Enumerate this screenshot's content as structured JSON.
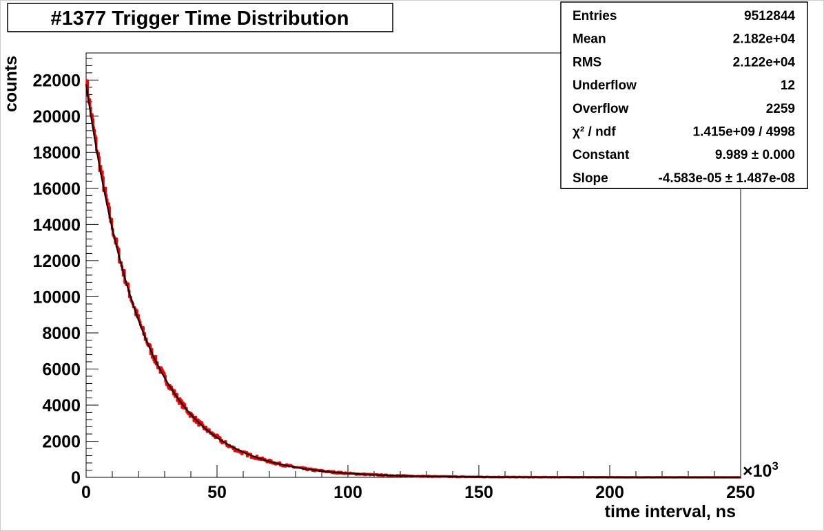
{
  "chart_data": {
    "type": "histogram",
    "title": "#1377 Trigger Time Distribution",
    "xlabel": "time interval, ns",
    "ylabel": "counts",
    "x_multiplier": "×10",
    "x_multiplier_exponent": "3",
    "xlim": [
      0,
      250000
    ],
    "ylim": [
      0,
      23500
    ],
    "x_ticks": [
      0,
      50000,
      100000,
      150000,
      200000,
      250000
    ],
    "x_tick_labels": [
      "0",
      "50",
      "100",
      "150",
      "200",
      "250"
    ],
    "y_ticks": [
      0,
      2000,
      4000,
      6000,
      8000,
      10000,
      12000,
      14000,
      16000,
      18000,
      20000,
      22000
    ],
    "y_tick_labels": [
      "0",
      "2000",
      "4000",
      "6000",
      "8000",
      "10000",
      "12000",
      "14000",
      "16000",
      "18000",
      "20000",
      "22000"
    ],
    "grid": false,
    "legend": "none",
    "series": [
      {
        "style": "histogram-red",
        "color": "#ff0000",
        "x": [
          0,
          5000,
          10000,
          15000,
          20000,
          25000,
          30000,
          35000,
          40000,
          45000,
          50000,
          55000,
          60000,
          65000,
          70000,
          75000,
          80000,
          90000,
          100000,
          110000,
          120000,
          140000,
          160000,
          180000,
          200000,
          225000,
          250000
        ],
        "y": [
          21900,
          17400,
          13800,
          10900,
          8700,
          6900,
          5500,
          4350,
          3450,
          2750,
          2200,
          1700,
          1350,
          1100,
          880,
          700,
          550,
          350,
          220,
          140,
          90,
          35,
          15,
          8,
          3,
          1,
          0
        ]
      },
      {
        "style": "fit-curve",
        "color": "#000000",
        "function": "exp(Constant + Slope*x)",
        "constant": 9.989,
        "slope": -4.583e-05
      }
    ],
    "stats_box": {
      "rows": [
        {
          "label": "Entries",
          "value": "9512844"
        },
        {
          "label": "Mean",
          "value": "2.182e+04"
        },
        {
          "label": "RMS",
          "value": "2.122e+04"
        },
        {
          "label": "Underflow",
          "value": "12"
        },
        {
          "label": "Overflow",
          "value": "2259"
        },
        {
          "label": "χ² / ndf",
          "value": "1.415e+09 / 4998"
        },
        {
          "label": "Constant",
          "value": "9.989 ± 0.000"
        },
        {
          "label": "Slope",
          "value": "-4.583e-05 ± 1.487e-08"
        }
      ]
    }
  }
}
